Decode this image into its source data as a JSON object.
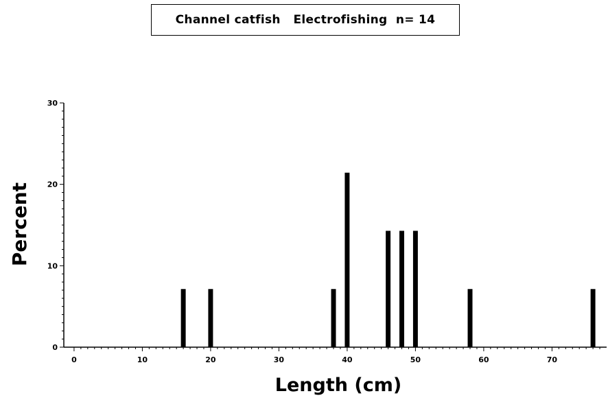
{
  "chart_data": {
    "type": "bar",
    "title_parts": [
      "Channel catfish",
      "Electrofishing",
      "n= 14"
    ],
    "xlabel": "Length (cm)",
    "ylabel": "Percent",
    "xlim": [
      -1.5,
      78
    ],
    "ylim": [
      0,
      30
    ],
    "xticks": [
      0,
      10,
      20,
      30,
      40,
      50,
      60,
      70
    ],
    "yticks": [
      0,
      10,
      20,
      30
    ],
    "bar_width": 1.0,
    "bar_color": "#000000",
    "grid": false,
    "x": [
      16,
      20,
      38,
      40,
      46,
      48,
      50,
      58,
      76
    ],
    "values": [
      7.14,
      7.14,
      7.14,
      21.43,
      14.29,
      14.29,
      14.29,
      7.14,
      7.14
    ]
  }
}
